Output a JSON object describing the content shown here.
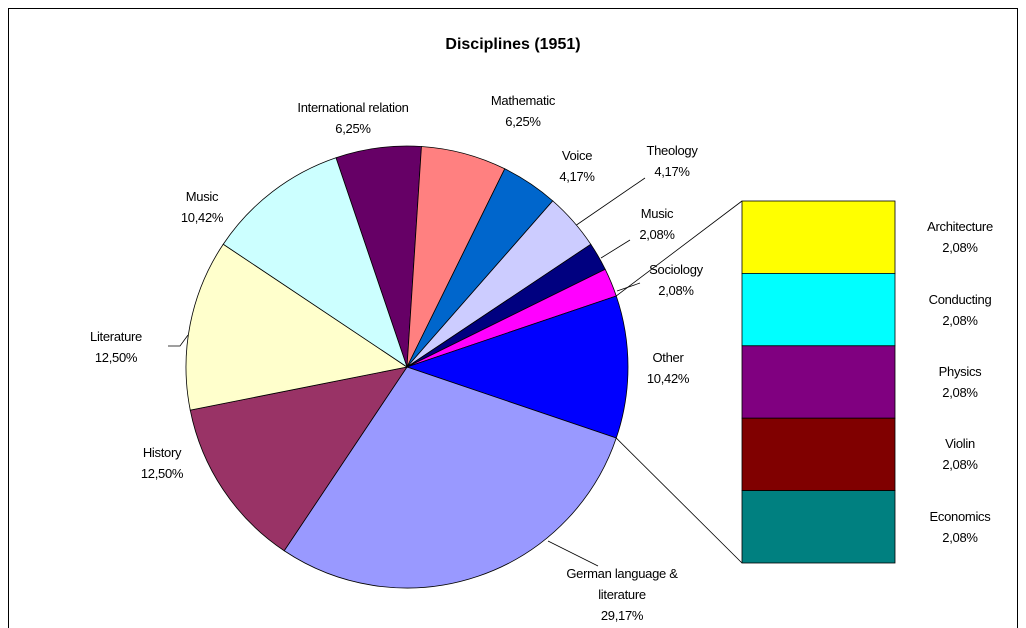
{
  "chart_data": {
    "type": "pie-of-bar",
    "title": "Disciplines (1951)",
    "categories": [
      "International relation",
      "Mathematic",
      "Voice",
      "Theology",
      "Music",
      "Sociology",
      "Other",
      "German language & literature",
      "History",
      "Literature",
      "Music"
    ],
    "values": [
      6.25,
      6.25,
      4.17,
      4.17,
      2.08,
      2.08,
      10.42,
      29.17,
      12.5,
      12.5,
      10.42
    ],
    "value_labels": [
      "6,25%",
      "6,25%",
      "4,17%",
      "4,17%",
      "2,08%",
      "2,08%",
      "10,42%",
      "29,17%",
      "12,50%",
      "12,50%",
      "10,42%"
    ],
    "colors": [
      "#660066",
      "#ff8080",
      "#0066cc",
      "#ccccff",
      "#000080",
      "#ff00ff",
      "#0000ff",
      "#9999ff",
      "#993366",
      "#ffffcc",
      "#ccffff"
    ],
    "bar": {
      "categories": [
        "Architecture",
        "Conducting",
        "Physics",
        "Violin",
        "Economics"
      ],
      "values": [
        2.08,
        2.08,
        2.08,
        2.08,
        2.08
      ],
      "value_labels": [
        "2,08%",
        "2,08%",
        "2,08%",
        "2,08%",
        "2,08%"
      ],
      "colors": [
        "#ffff00",
        "#00ffff",
        "#800080",
        "#800000",
        "#008080"
      ]
    }
  }
}
